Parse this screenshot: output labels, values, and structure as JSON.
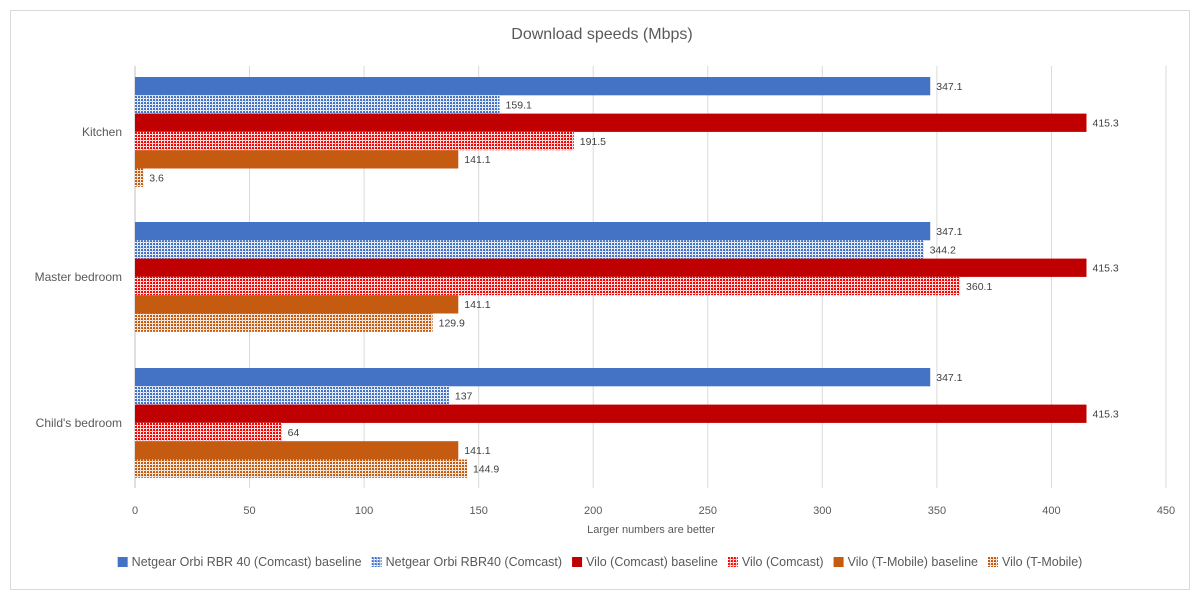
{
  "chart_data": {
    "type": "bar",
    "orientation": "horizontal",
    "title": "Download speeds (Mbps)",
    "xlabel": "Larger numbers are better",
    "ylabel": "",
    "xlim": [
      0,
      450
    ],
    "xticks": [
      0,
      50,
      100,
      150,
      200,
      250,
      300,
      350,
      400,
      450
    ],
    "grid": true,
    "legend_position": "bottom",
    "categories": [
      "Kitchen",
      "Master bedroom",
      "Child's bedroom"
    ],
    "series": [
      {
        "name": "Netgear Orbi RBR 40 (Comcast) baseline",
        "values": [
          347.1,
          347.1,
          347.1
        ],
        "labels": [
          "347.1",
          "347.1",
          "347.1"
        ],
        "color": "#4472c4",
        "pattern": "solid"
      },
      {
        "name": "Netgear Orbi RBR40 (Comcast)",
        "values": [
          159.1,
          344.2,
          137
        ],
        "labels": [
          "159.1",
          "344.2",
          "137"
        ],
        "color": "#4472c4",
        "pattern": "dotted"
      },
      {
        "name": "Vilo (Comcast) baseline",
        "values": [
          415.3,
          415.3,
          415.3
        ],
        "labels": [
          "415.3",
          "415.3",
          "415.3"
        ],
        "color": "#c00000",
        "pattern": "solid"
      },
      {
        "name": "Vilo (Comcast)",
        "values": [
          191.5,
          360.1,
          64
        ],
        "labels": [
          "191.5",
          "360.1",
          "64"
        ],
        "color": "#ff0000",
        "pattern": "dotted"
      },
      {
        "name": "Vilo (T-Mobile) baseline",
        "values": [
          141.1,
          141.1,
          141.1
        ],
        "labels": [
          "141.1",
          "141.1",
          "141.1"
        ],
        "color": "#c55a11",
        "pattern": "solid"
      },
      {
        "name": "Vilo (T-Mobile)",
        "values": [
          3.6,
          129.9,
          144.9
        ],
        "labels": [
          "3.6",
          "129.9",
          "144.9"
        ],
        "color": "#c55a11",
        "pattern": "dotted"
      }
    ]
  }
}
